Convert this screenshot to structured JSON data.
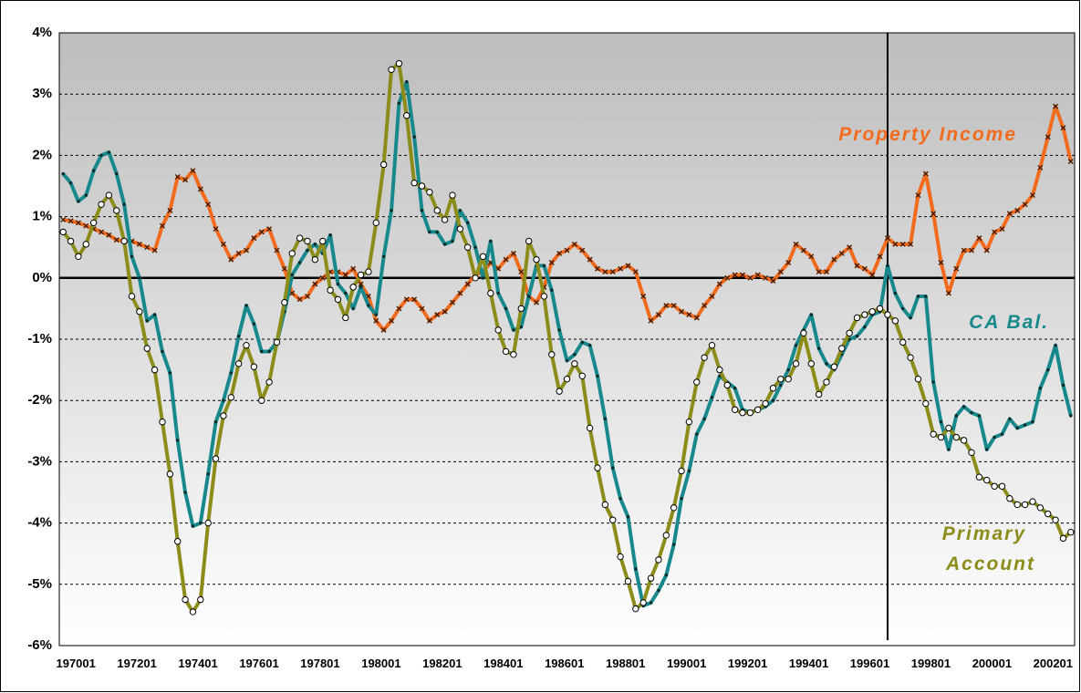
{
  "chart_data": {
    "type": "line",
    "categories": [
      "197001",
      null,
      null,
      null,
      null,
      null,
      null,
      null,
      "197201",
      null,
      null,
      null,
      null,
      null,
      null,
      null,
      "197401",
      null,
      null,
      null,
      null,
      null,
      null,
      null,
      "197601",
      null,
      null,
      null,
      null,
      null,
      null,
      null,
      "197801",
      null,
      null,
      null,
      null,
      null,
      null,
      null,
      "198001",
      null,
      null,
      null,
      null,
      null,
      null,
      null,
      "198201",
      null,
      null,
      null,
      null,
      null,
      null,
      null,
      "198401",
      null,
      null,
      null,
      null,
      null,
      null,
      null,
      "198601",
      null,
      null,
      null,
      null,
      null,
      null,
      null,
      "198801",
      null,
      null,
      null,
      null,
      null,
      null,
      null,
      "199001",
      null,
      null,
      null,
      null,
      null,
      null,
      null,
      "199201",
      null,
      null,
      null,
      null,
      null,
      null,
      null,
      "199401",
      null,
      null,
      null,
      null,
      null,
      null,
      null,
      "199601",
      null,
      null,
      null,
      null,
      null,
      null,
      null,
      "199801",
      null,
      null,
      null,
      null,
      null,
      null,
      null,
      "200001",
      null,
      null,
      null,
      null,
      null,
      null,
      null,
      "200201",
      null,
      null,
      null,
      null
    ],
    "series": [
      {
        "name": "Property Income",
        "color": "#f26b1d",
        "marker": "x",
        "values": [
          0.95,
          0.93,
          0.9,
          0.85,
          0.8,
          0.75,
          0.7,
          0.62,
          0.6,
          0.6,
          0.55,
          0.5,
          0.45,
          0.85,
          1.1,
          1.65,
          1.6,
          1.75,
          1.45,
          1.2,
          0.8,
          0.55,
          0.3,
          0.4,
          0.45,
          0.65,
          0.75,
          0.8,
          0.45,
          0.15,
          -0.25,
          -0.35,
          -0.3,
          -0.1,
          0.0,
          0.1,
          0.1,
          0.05,
          0.15,
          -0.1,
          -0.3,
          -0.7,
          -0.85,
          -0.7,
          -0.5,
          -0.35,
          -0.35,
          -0.5,
          -0.7,
          -0.6,
          -0.55,
          -0.4,
          -0.25,
          -0.1,
          0.05,
          0.1,
          0.25,
          0.15,
          0.3,
          0.4,
          0.1,
          -0.3,
          -0.4,
          -0.15,
          0.25,
          0.4,
          0.45,
          0.55,
          0.45,
          0.3,
          0.15,
          0.1,
          0.1,
          0.15,
          0.2,
          0.1,
          -0.3,
          -0.7,
          -0.6,
          -0.45,
          -0.45,
          -0.55,
          -0.6,
          -0.65,
          -0.45,
          -0.3,
          -0.1,
          0.0,
          0.05,
          0.05,
          0.0,
          0.05,
          0.0,
          -0.05,
          0.1,
          0.25,
          0.55,
          0.45,
          0.35,
          0.1,
          0.1,
          0.3,
          0.4,
          0.5,
          0.2,
          0.15,
          0.05,
          0.35,
          0.65,
          0.55,
          0.55,
          0.55,
          1.35,
          1.7,
          1.05,
          0.25,
          -0.25,
          0.15,
          0.45,
          0.45,
          0.65,
          0.45,
          0.75,
          0.8,
          1.05,
          1.1,
          1.2,
          1.35,
          1.8,
          2.3,
          2.8,
          2.45,
          1.9
        ]
      },
      {
        "name": "CA Bal.",
        "color": "#17898c",
        "marker": "dot",
        "values": [
          1.7,
          1.55,
          1.25,
          1.35,
          1.75,
          2.0,
          2.05,
          1.7,
          1.2,
          0.35,
          0.0,
          -0.7,
          -0.6,
          -1.2,
          -1.55,
          -2.65,
          -3.5,
          -4.05,
          -4.0,
          -3.2,
          -2.35,
          -2.0,
          -1.55,
          -0.95,
          -0.45,
          -0.75,
          -1.2,
          -1.2,
          -1.05,
          -0.55,
          0.05,
          0.25,
          0.45,
          0.55,
          0.4,
          0.7,
          -0.1,
          -0.25,
          -0.5,
          -0.15,
          -0.45,
          -0.6,
          0.35,
          1.1,
          2.85,
          3.2,
          2.3,
          1.1,
          0.75,
          0.75,
          0.55,
          0.6,
          1.1,
          0.9,
          0.5,
          0.0,
          0.6,
          -0.25,
          -0.5,
          -0.85,
          -0.8,
          -0.3,
          0.2,
          0.2,
          -0.2,
          -0.85,
          -1.35,
          -1.25,
          -1.05,
          -1.1,
          -1.6,
          -2.3,
          -3.1,
          -3.6,
          -3.9,
          -4.75,
          -5.35,
          -5.3,
          -5.1,
          -4.85,
          -4.35,
          -3.6,
          -3.15,
          -2.55,
          -2.3,
          -1.95,
          -1.6,
          -1.7,
          -1.8,
          -2.15,
          -2.2,
          -2.15,
          -2.1,
          -2.0,
          -1.75,
          -1.5,
          -1.1,
          -0.85,
          -0.6,
          -1.15,
          -1.4,
          -1.5,
          -1.25,
          -1.0,
          -0.95,
          -0.8,
          -0.6,
          -0.55,
          0.2,
          -0.25,
          -0.5,
          -0.65,
          -0.3,
          -0.3,
          -1.7,
          -2.35,
          -2.8,
          -2.25,
          -2.1,
          -2.2,
          -2.25,
          -2.8,
          -2.6,
          -2.55,
          -2.3,
          -2.45,
          -2.4,
          -2.35,
          -1.8,
          -1.5,
          -1.1,
          -1.75,
          -2.25
        ]
      },
      {
        "name": "Primary Account",
        "color": "#8c8c1a",
        "marker": "circle",
        "values": [
          0.75,
          0.6,
          0.35,
          0.55,
          0.9,
          1.2,
          1.35,
          1.1,
          0.6,
          -0.3,
          -0.55,
          -1.15,
          -1.5,
          -2.35,
          -3.2,
          -4.3,
          -5.25,
          -5.45,
          -5.25,
          -4.0,
          -2.95,
          -2.25,
          -1.95,
          -1.4,
          -1.1,
          -1.45,
          -2.0,
          -1.7,
          -1.05,
          -0.4,
          0.4,
          0.65,
          0.6,
          0.3,
          0.6,
          -0.2,
          -0.35,
          -0.65,
          -0.15,
          0.05,
          0.1,
          0.9,
          1.85,
          3.4,
          3.5,
          2.65,
          1.55,
          1.5,
          1.4,
          1.1,
          0.95,
          1.35,
          0.8,
          0.5,
          0.0,
          0.35,
          -0.25,
          -0.85,
          -1.2,
          -1.25,
          -0.5,
          0.6,
          0.3,
          -0.3,
          -1.25,
          -1.85,
          -1.65,
          -1.4,
          -1.6,
          -2.45,
          -3.1,
          -3.7,
          -3.95,
          -4.55,
          -4.95,
          -5.4,
          -5.3,
          -4.9,
          -4.6,
          -4.2,
          -3.75,
          -3.15,
          -2.35,
          -1.7,
          -1.3,
          -1.1,
          -1.5,
          -1.75,
          -2.15,
          -2.2,
          -2.2,
          -2.15,
          -2.05,
          -1.8,
          -1.65,
          -1.65,
          -1.4,
          -0.9,
          -1.4,
          -1.9,
          -1.7,
          -1.45,
          -1.15,
          -0.9,
          -0.65,
          -0.6,
          -0.55,
          -0.5,
          -0.6,
          -0.7,
          -1.05,
          -1.3,
          -1.65,
          -2.05,
          -2.55,
          -2.6,
          -2.45,
          -2.6,
          -2.65,
          -2.85,
          -3.25,
          -3.3,
          -3.4,
          -3.4,
          -3.6,
          -3.7,
          -3.7,
          -3.65,
          -3.75,
          -3.85,
          -3.95,
          -4.25,
          -4.15
        ]
      }
    ],
    "ylim": [
      -6,
      4
    ],
    "yticks": [
      {
        "value": -6,
        "label": "-6%"
      },
      {
        "value": -5,
        "label": "-5%"
      },
      {
        "value": -4,
        "label": "-4%"
      },
      {
        "value": -3,
        "label": "-3%"
      },
      {
        "value": -2,
        "label": "-2%"
      },
      {
        "value": -1,
        "label": "-1%"
      },
      {
        "value": 0,
        "label": "0%"
      },
      {
        "value": 1,
        "label": "1%"
      },
      {
        "value": 2,
        "label": "2%"
      },
      {
        "value": 3,
        "label": "3%"
      },
      {
        "value": 4,
        "label": "4%"
      }
    ],
    "grid": true,
    "vertical_line_at": 108
  }
}
